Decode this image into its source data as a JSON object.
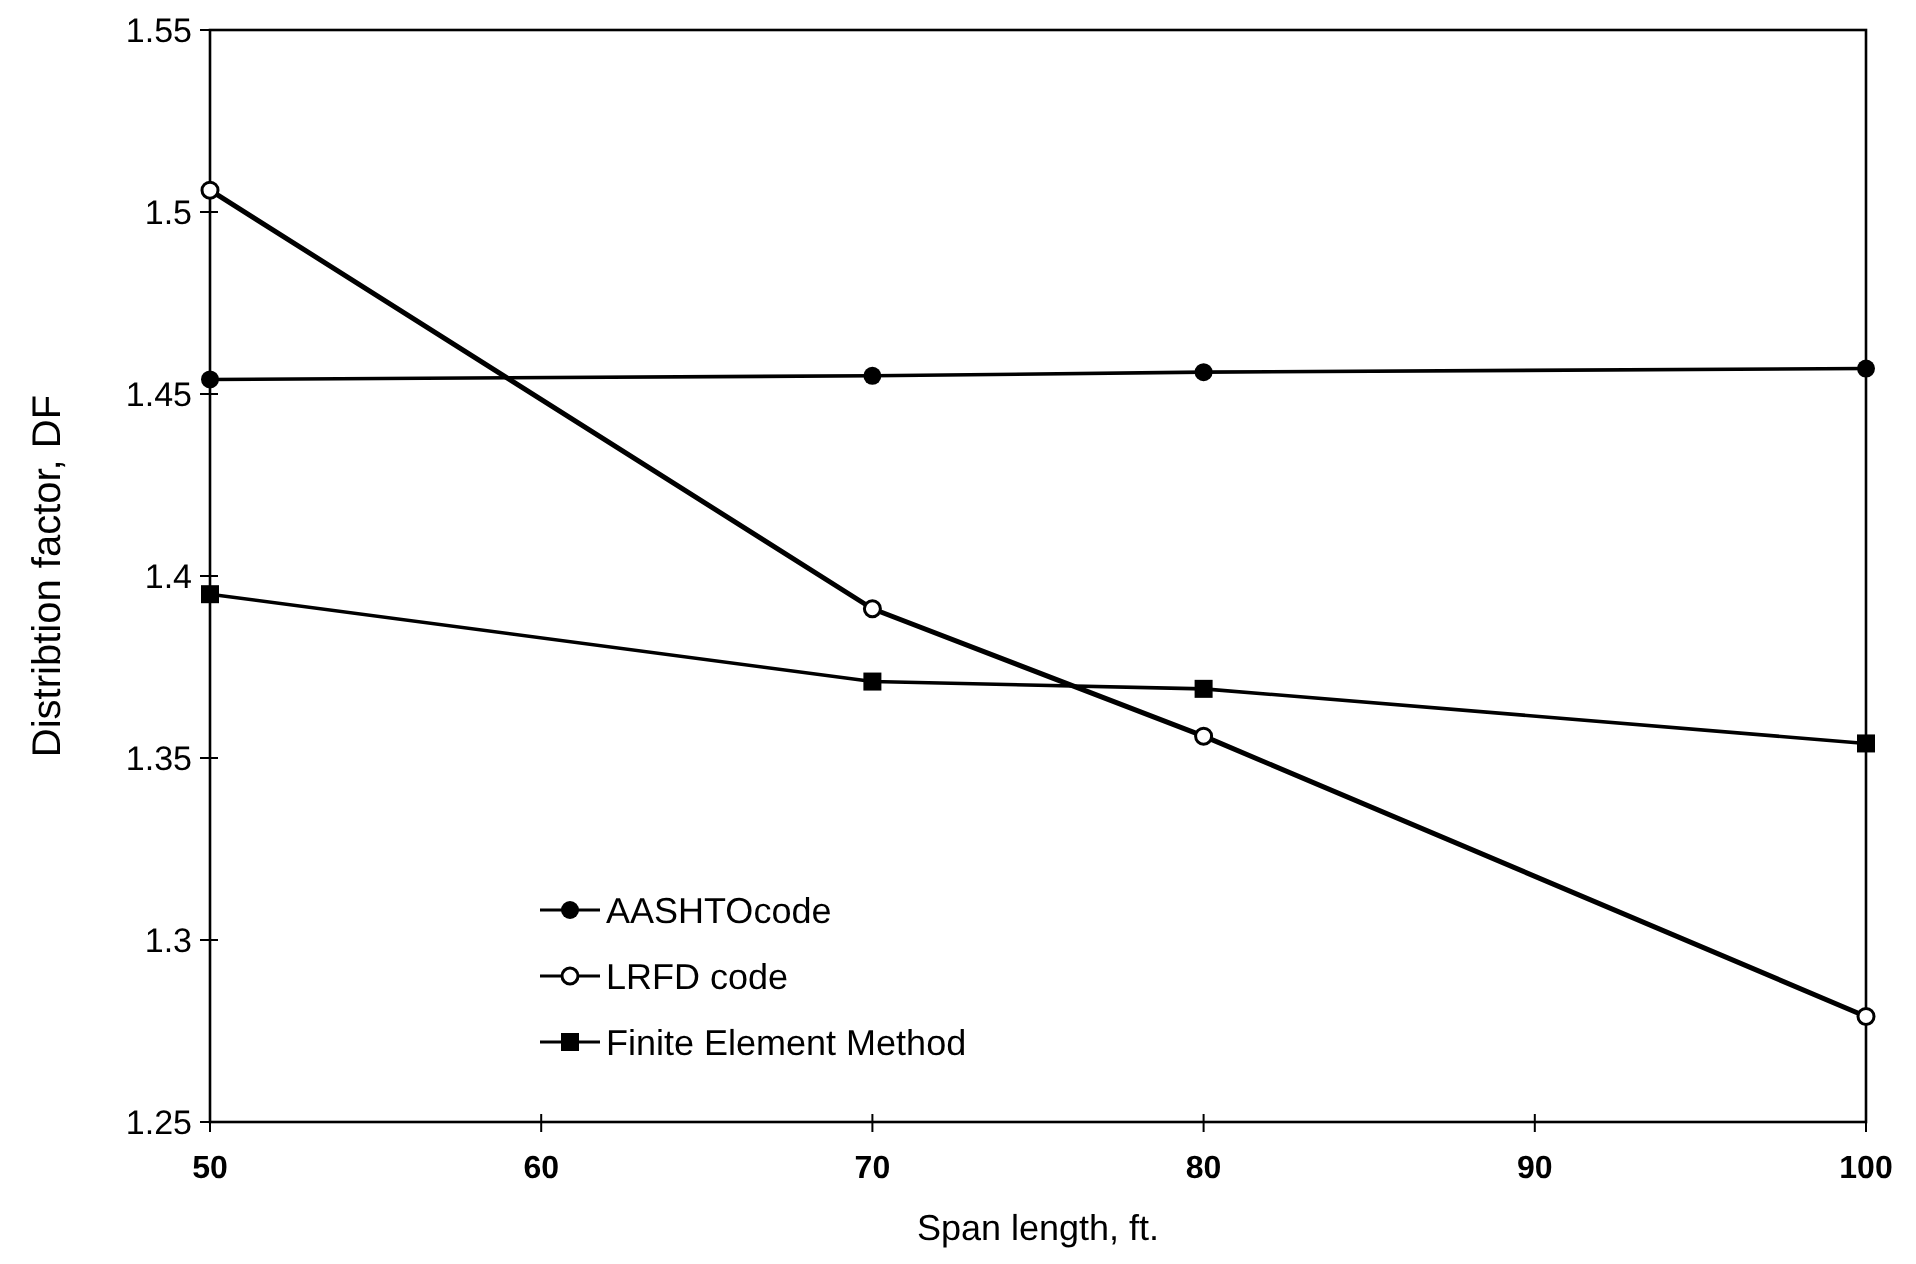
{
  "chart_data": {
    "type": "line",
    "xlabel": "Span length, ft.",
    "ylabel": "Distribtion factor, DF",
    "x": [
      50,
      70,
      80,
      100
    ],
    "xlim": [
      50,
      100
    ],
    "xticks": [
      50,
      60,
      70,
      80,
      90,
      100
    ],
    "ylim": [
      1.25,
      1.55
    ],
    "yticks": [
      1.25,
      1.3,
      1.35,
      1.4,
      1.45,
      1.5,
      1.55
    ],
    "series": [
      {
        "name": "AASHTOcode",
        "color": "#000000",
        "values": [
          1.454,
          1.455,
          1.456,
          1.457
        ],
        "marker": "circle"
      },
      {
        "name": "LRFD code",
        "color": "#000000",
        "values": [
          1.506,
          1.391,
          1.356,
          1.279
        ],
        "marker": "open-circle"
      },
      {
        "name": "Finite Element Method",
        "color": "#000000",
        "values": [
          1.395,
          1.371,
          1.369,
          1.354
        ],
        "marker": "square"
      }
    ],
    "legend": "bottom left",
    "grid": false,
    "line_style": "solid"
  }
}
